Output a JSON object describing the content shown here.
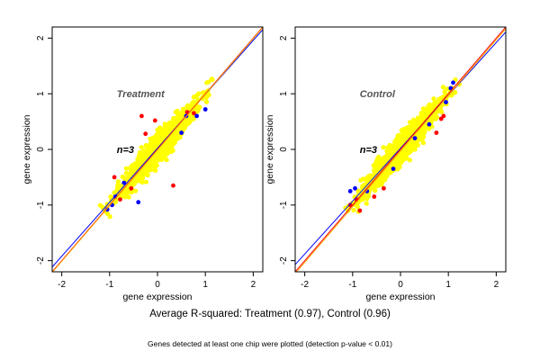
{
  "footer": {
    "main": "Average R-squared: Treatment (0.97), Control (0.96)",
    "sub": "Genes detected at least one chip were plotted (detection p-value < 0.01)"
  },
  "colors": {
    "points": "#ffff00",
    "outlier_red": "#ff0000",
    "outlier_blue": "#0000ff",
    "line_red": "#ff0000",
    "line_orange": "#ffa500",
    "line_blue": "#0000ff",
    "panel_title": "#555555"
  },
  "chart_data": [
    {
      "type": "scatter",
      "title": "Treatment",
      "annotation": "n=3",
      "xlabel": "gene expression",
      "ylabel": "gene expression",
      "xlim": [
        -2.2,
        2.2
      ],
      "ylim": [
        -2.2,
        2.2
      ],
      "xticks": [
        -2,
        -1,
        0,
        1,
        2
      ],
      "yticks": [
        -2,
        -1,
        0,
        1,
        2
      ],
      "grid": false,
      "cloud": {
        "color": "yellow",
        "x_range": [
          -1.1,
          1.2
        ],
        "center": [
          0.0,
          0.0
        ]
      },
      "series": [
        {
          "color": "red",
          "points": [
            [
              -0.33,
              0.6
            ],
            [
              -0.25,
              0.28
            ],
            [
              -0.05,
              0.52
            ],
            [
              0.33,
              -0.65
            ],
            [
              -0.9,
              -0.5
            ],
            [
              0.62,
              0.67
            ],
            [
              0.76,
              0.65
            ],
            [
              -0.78,
              -0.9
            ],
            [
              -0.55,
              -0.7
            ]
          ]
        },
        {
          "color": "blue",
          "points": [
            [
              0.82,
              0.6
            ],
            [
              1.0,
              0.72
            ],
            [
              0.6,
              0.6
            ],
            [
              -0.88,
              -0.85
            ],
            [
              -0.95,
              -1.0
            ],
            [
              -1.05,
              -1.08
            ],
            [
              -0.4,
              -0.95
            ],
            [
              0.5,
              0.3
            ],
            [
              -0.7,
              -0.6
            ]
          ]
        }
      ],
      "lines": [
        {
          "color": "blue",
          "slope": 0.97,
          "intercept": 0.02
        },
        {
          "color": "red",
          "slope": 1.0,
          "intercept": 0.0
        },
        {
          "color": "orange",
          "slope": 1.0,
          "intercept": -0.01
        }
      ]
    },
    {
      "type": "scatter",
      "title": "Control",
      "annotation": "n=3",
      "xlabel": "gene expression",
      "ylabel": "gene expression",
      "xlim": [
        -2.2,
        2.2
      ],
      "ylim": [
        -2.2,
        2.2
      ],
      "xticks": [
        -2,
        -1,
        0,
        1,
        2
      ],
      "yticks": [
        -2,
        -1,
        0,
        1,
        2
      ],
      "grid": false,
      "cloud": {
        "color": "yellow",
        "x_range": [
          -1.1,
          1.2
        ],
        "center": [
          0.0,
          0.0
        ]
      },
      "series": [
        {
          "color": "red",
          "points": [
            [
              -0.92,
              -0.9
            ],
            [
              -1.05,
              -1.0
            ],
            [
              -0.85,
              -1.1
            ],
            [
              0.75,
              0.3
            ],
            [
              0.85,
              0.55
            ],
            [
              0.9,
              0.6
            ],
            [
              -0.55,
              -0.85
            ],
            [
              -0.35,
              -0.7
            ]
          ]
        },
        {
          "color": "blue",
          "points": [
            [
              1.1,
              1.2
            ],
            [
              1.05,
              1.1
            ],
            [
              0.95,
              0.85
            ],
            [
              -1.05,
              -0.75
            ],
            [
              -0.95,
              -0.7
            ],
            [
              -0.7,
              -0.75
            ],
            [
              0.6,
              0.45
            ],
            [
              -0.15,
              -0.35
            ],
            [
              0.3,
              0.2
            ]
          ]
        }
      ],
      "lines": [
        {
          "color": "blue",
          "slope": 0.95,
          "intercept": 0.02
        },
        {
          "color": "red",
          "slope": 1.0,
          "intercept": 0.0
        },
        {
          "color": "orange",
          "slope": 1.0,
          "intercept": -0.03
        }
      ]
    }
  ]
}
